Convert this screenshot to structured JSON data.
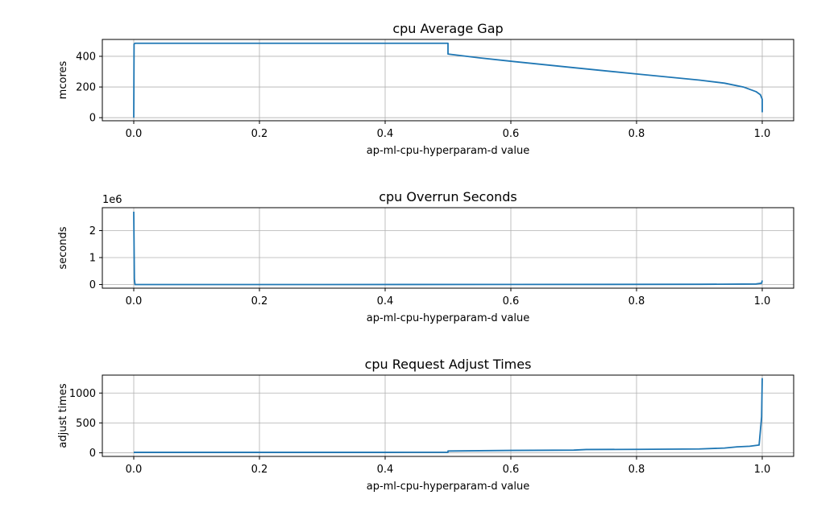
{
  "chart_data": [
    {
      "type": "line",
      "title": "cpu Average Gap",
      "xlabel": "ap-ml-cpu-hyperparam-d value",
      "ylabel": "mcores",
      "offset_text": "",
      "xlim": [
        -0.05,
        1.05
      ],
      "ylim": [
        -20,
        510
      ],
      "xticks": [
        0.0,
        0.2,
        0.4,
        0.6,
        0.8,
        1.0
      ],
      "xtick_labels": [
        "0.0",
        "0.2",
        "0.4",
        "0.6",
        "0.8",
        "1.0"
      ],
      "yticks": [
        0,
        200,
        400
      ],
      "ytick_labels": [
        "0",
        "200",
        "400"
      ],
      "grid": true,
      "color": "#1f77b4",
      "series": [
        {
          "x": [
            0.0,
            0.0005,
            0.002,
            0.1,
            0.3,
            0.5,
            0.5,
            0.55,
            0.6,
            0.7,
            0.8,
            0.9,
            0.94,
            0.97,
            0.99,
            0.997,
            1.0,
            1.0
          ],
          "values": [
            0,
            480,
            485,
            485,
            485,
            485,
            415,
            390,
            368,
            326,
            285,
            245,
            225,
            200,
            170,
            150,
            120,
            35
          ]
        }
      ]
    },
    {
      "type": "line",
      "title": "cpu Overrun Seconds",
      "xlabel": "ap-ml-cpu-hyperparam-d value",
      "ylabel": "seconds",
      "offset_text": "1e6",
      "xlim": [
        -0.05,
        1.05
      ],
      "ylim": [
        -135000,
        2850000
      ],
      "xticks": [
        0.0,
        0.2,
        0.4,
        0.6,
        0.8,
        1.0
      ],
      "xtick_labels": [
        "0.0",
        "0.2",
        "0.4",
        "0.6",
        "0.8",
        "1.0"
      ],
      "yticks": [
        0,
        1000000,
        2000000
      ],
      "ytick_labels": [
        "0",
        "1",
        "2"
      ],
      "grid": true,
      "color": "#1f77b4",
      "series": [
        {
          "x": [
            0.0,
            0.001,
            0.002,
            0.3,
            0.6,
            0.9,
            0.99,
            0.999,
            1.0
          ],
          "values": [
            2700000,
            200000,
            0,
            0,
            2000,
            8000,
            20000,
            50000,
            150000
          ]
        }
      ]
    },
    {
      "type": "line",
      "title": "cpu Request Adjust Times",
      "xlabel": "ap-ml-cpu-hyperparam-d value",
      "ylabel": "adjust times",
      "offset_text": "",
      "xlim": [
        -0.05,
        1.05
      ],
      "ylim": [
        -60,
        1300
      ],
      "xticks": [
        0.0,
        0.2,
        0.4,
        0.6,
        0.8,
        1.0
      ],
      "xtick_labels": [
        "0.0",
        "0.2",
        "0.4",
        "0.6",
        "0.8",
        "1.0"
      ],
      "yticks": [
        0,
        500,
        1000
      ],
      "ytick_labels": [
        "0",
        "500",
        "1000"
      ],
      "grid": true,
      "color": "#1f77b4",
      "series": [
        {
          "x": [
            0.0,
            0.2,
            0.4,
            0.5,
            0.5,
            0.55,
            0.6,
            0.7,
            0.72,
            0.8,
            0.9,
            0.94,
            0.96,
            0.98,
            0.995,
            0.999,
            1.0
          ],
          "values": [
            8,
            8,
            8,
            10,
            30,
            35,
            40,
            45,
            55,
            58,
            65,
            80,
            100,
            110,
            130,
            600,
            1250
          ]
        }
      ]
    }
  ]
}
